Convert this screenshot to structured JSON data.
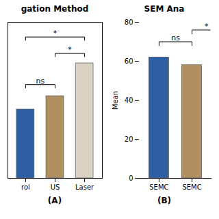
{
  "chart_data": [
    {
      "type": "bar",
      "title": "gation Method",
      "categories": [
        "rol",
        "US",
        "Laser"
      ],
      "values": [
        42,
        50,
        70
      ],
      "colors": [
        "#2E5FA3",
        "#B09060",
        "#D8D3C5"
      ],
      "ylim": [
        0,
        95
      ],
      "tick_labels": "x",
      "brackets": [
        {
          "x1": 0,
          "x2": 1,
          "y": 55,
          "height": 2,
          "label": "ns"
        },
        {
          "x1": 1,
          "x2": 2,
          "y": 74,
          "height": 2,
          "label": "*"
        },
        {
          "x1": 0,
          "x2": 2,
          "y": 84,
          "height": 2,
          "label": "*"
        }
      ],
      "caption": "(A)"
    },
    {
      "type": "bar",
      "title": "SEM Ana",
      "categories": [
        "SEMC",
        "SEMC"
      ],
      "values": [
        62,
        58
      ],
      "colors": [
        "#2E5FA3",
        "#B09060"
      ],
      "ylabel": "Mean",
      "ylim": [
        0,
        80
      ],
      "yticks": [
        0,
        20,
        40,
        60,
        80
      ],
      "brackets": [
        {
          "x1": 0,
          "x2": 1,
          "y": 68,
          "height": 2,
          "label": "ns"
        },
        {
          "x1": 1,
          "x2": 1.55,
          "y": 74,
          "height": 2,
          "label": "*",
          "partial": true
        }
      ],
      "caption": "(B)"
    }
  ]
}
